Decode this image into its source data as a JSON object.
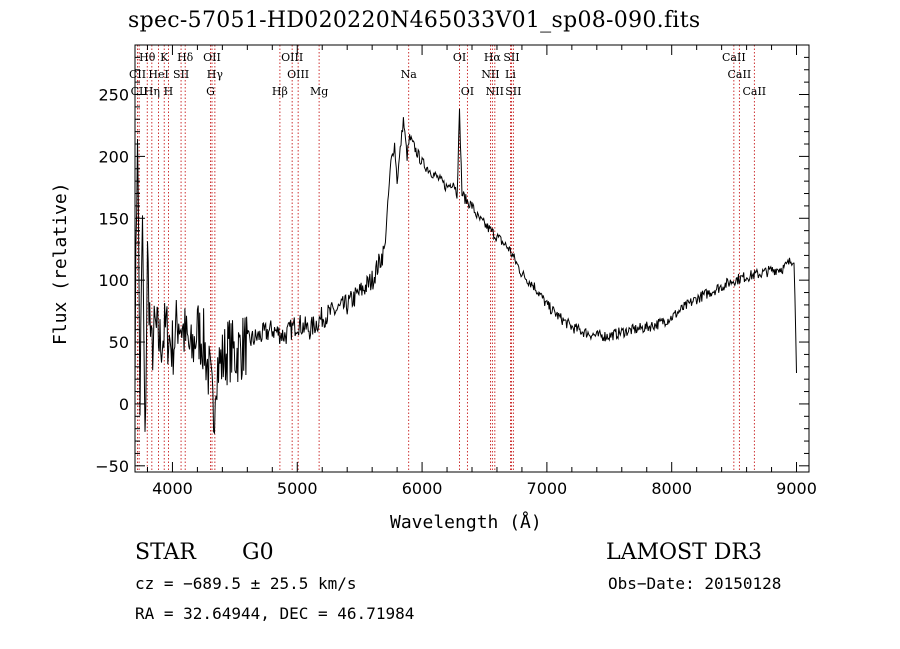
{
  "chart_data": {
    "type": "line",
    "title": "spec-57051-HD020220N465033V01_sp08-090.fits",
    "xlabel": "Wavelength (Å)",
    "ylabel": "Flux (relative)",
    "xlim": [
      3700,
      9100
    ],
    "ylim": [
      -55,
      290
    ],
    "xticks": [
      4000,
      5000,
      6000,
      7000,
      8000,
      9000
    ],
    "yticks": [
      -50,
      0,
      50,
      100,
      150,
      200,
      250
    ],
    "series": [
      {
        "name": "flux",
        "x": [
          3700,
          3720,
          3740,
          3760,
          3780,
          3800,
          3830,
          3860,
          3900,
          3950,
          4000,
          4050,
          4100,
          4150,
          4200,
          4250,
          4300,
          4330,
          4350,
          4400,
          4450,
          4500,
          4600,
          4700,
          4800,
          4900,
          5000,
          5100,
          5200,
          5300,
          5400,
          5500,
          5600,
          5700,
          5750,
          5780,
          5800,
          5850,
          5880,
          5900,
          5950,
          6000,
          6050,
          6100,
          6150,
          6200,
          6250,
          6280,
          6300,
          6320,
          6350,
          6400,
          6450,
          6500,
          6550,
          6600,
          6650,
          6700,
          6750,
          6800,
          6900,
          7000,
          7100,
          7200,
          7300,
          7400,
          7500,
          7600,
          7700,
          7800,
          7900,
          8000,
          8100,
          8200,
          8300,
          8400,
          8500,
          8600,
          8700,
          8800,
          8900,
          8950,
          8980,
          9000
        ],
        "y": [
          40,
          230,
          0,
          150,
          -40,
          120,
          40,
          60,
          50,
          60,
          45,
          70,
          55,
          40,
          60,
          50,
          20,
          -10,
          30,
          35,
          45,
          40,
          50,
          55,
          60,
          55,
          65,
          60,
          70,
          75,
          80,
          90,
          100,
          125,
          195,
          210,
          180,
          230,
          200,
          215,
          205,
          195,
          190,
          185,
          180,
          175,
          180,
          170,
          235,
          170,
          165,
          160,
          150,
          145,
          140,
          135,
          130,
          125,
          115,
          105,
          95,
          80,
          70,
          62,
          58,
          55,
          55,
          58,
          60,
          62,
          65,
          70,
          78,
          85,
          90,
          95,
          100,
          103,
          105,
          108,
          110,
          115,
          118,
          25
        ]
      }
    ],
    "lines": [
      {
        "label": "Hθ",
        "wl": 3798,
        "row": 1
      },
      {
        "label": "CII",
        "wl": 3720,
        "row": 2
      },
      {
        "label": "CII",
        "wl": 3733,
        "row": 3
      },
      {
        "label": "K",
        "wl": 3934,
        "row": 1
      },
      {
        "label": "H",
        "wl": 3968,
        "row": 3
      },
      {
        "label": "HeI",
        "wl": 3889,
        "row": 2
      },
      {
        "label": "Hη",
        "wl": 3835,
        "row": 3
      },
      {
        "label": "SII",
        "wl": 4069,
        "row": 2
      },
      {
        "label": "Hδ",
        "wl": 4102,
        "row": 1
      },
      {
        "label": "OII",
        "wl": 4317,
        "row": 1
      },
      {
        "label": "Hγ",
        "wl": 4340,
        "row": 2
      },
      {
        "label": "G",
        "wl": 4305,
        "row": 3
      },
      {
        "label": "Hβ",
        "wl": 4861,
        "row": 3
      },
      {
        "label": "OIII",
        "wl": 4959,
        "row": 1
      },
      {
        "label": "OIII",
        "wl": 5007,
        "row": 2
      },
      {
        "label": "Mg",
        "wl": 5175,
        "row": 3
      },
      {
        "label": "Na",
        "wl": 5893,
        "row": 2
      },
      {
        "label": "OI",
        "wl": 6300,
        "row": 1
      },
      {
        "label": "OI",
        "wl": 6363,
        "row": 3
      },
      {
        "label": "Hα",
        "wl": 6563,
        "row": 1
      },
      {
        "label": "NII",
        "wl": 6548,
        "row": 2
      },
      {
        "label": "NII",
        "wl": 6583,
        "row": 3
      },
      {
        "label": "SII",
        "wl": 6716,
        "row": 1
      },
      {
        "label": "Li",
        "wl": 6708,
        "row": 2
      },
      {
        "label": "SII",
        "wl": 6731,
        "row": 3
      },
      {
        "label": "CaII",
        "wl": 8498,
        "row": 1
      },
      {
        "label": "CaII",
        "wl": 8542,
        "row": 2
      },
      {
        "label": "CaII",
        "wl": 8662,
        "row": 3
      }
    ]
  },
  "info": {
    "object_class": "STAR",
    "subclass": "G0",
    "survey": "LAMOST DR3",
    "cz": "cz = −689.5 ± 25.5 km/s",
    "obs_date": "Obs−Date: 20150128",
    "coords": "RA =  32.64944, DEC =  46.71984"
  },
  "colors": {
    "line_marker": "#c00000",
    "spectrum": "#000000",
    "axes": "#000000"
  }
}
